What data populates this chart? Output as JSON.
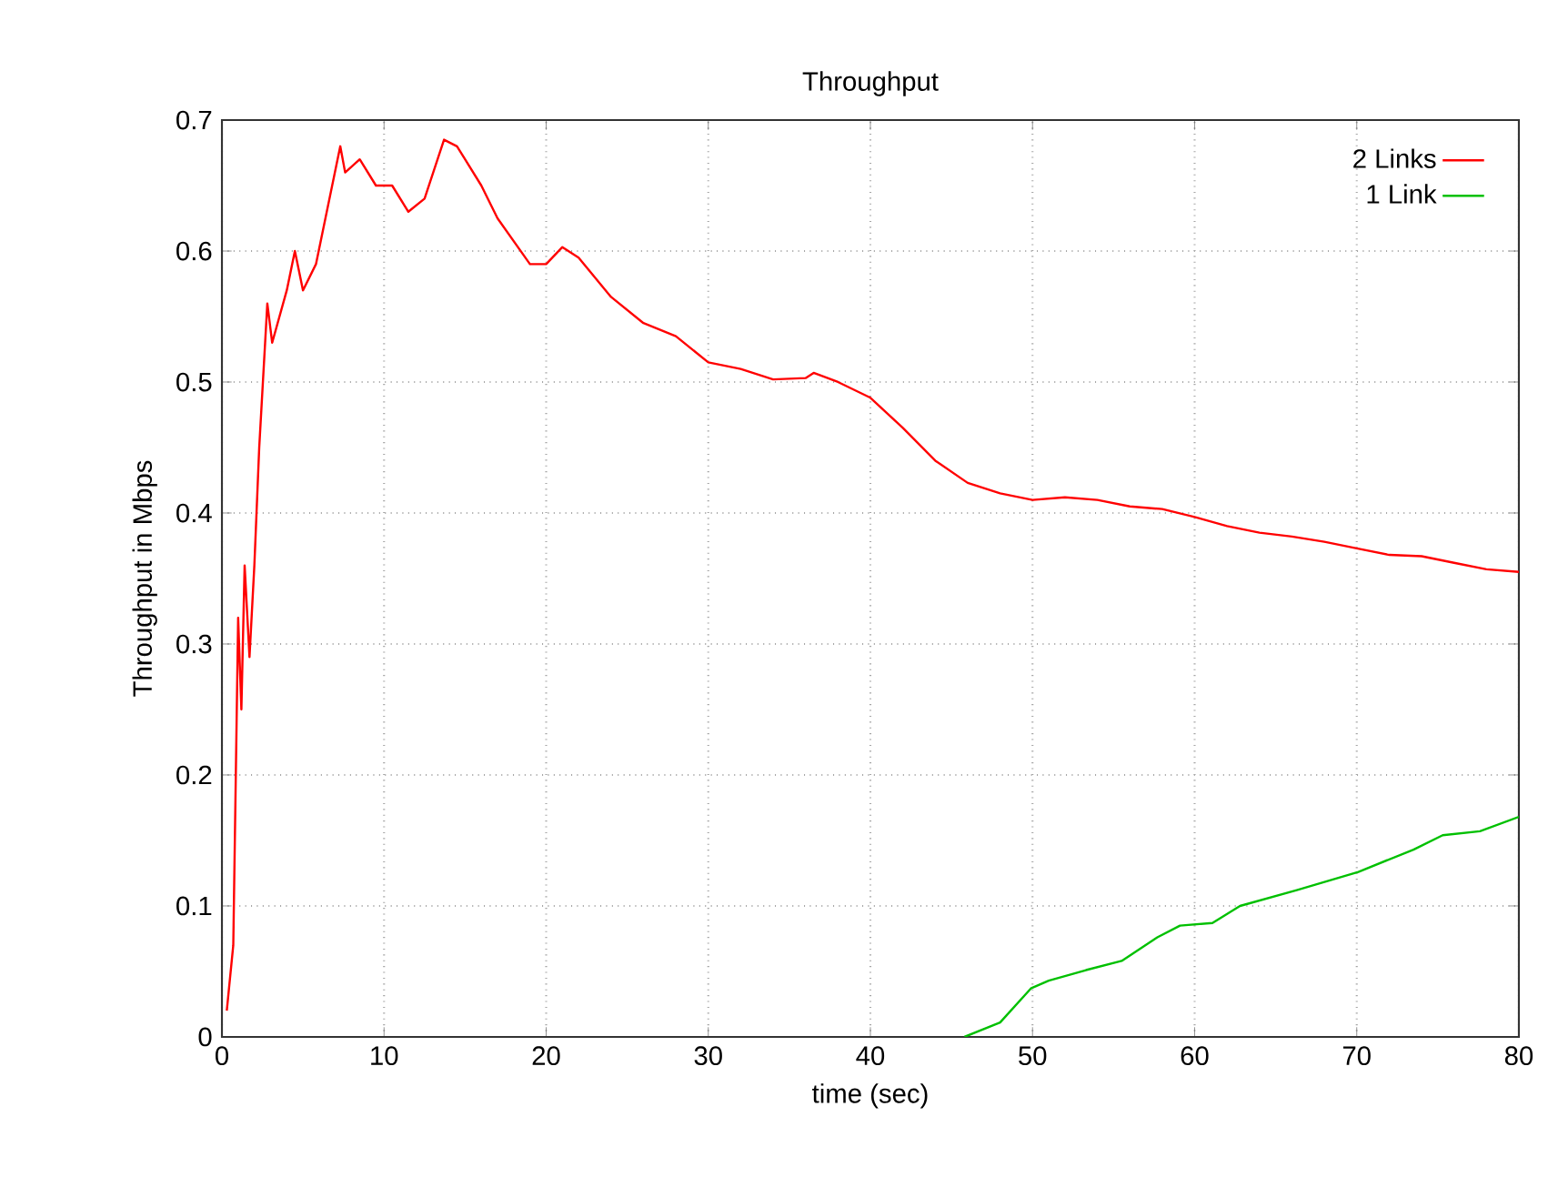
{
  "chart_data": {
    "type": "line",
    "title": "Throughput",
    "xlabel": "time (sec)",
    "ylabel": "Throughput in Mbps",
    "xlim": [
      0,
      80
    ],
    "ylim": [
      0,
      0.7
    ],
    "xticks": [
      0,
      10,
      20,
      30,
      40,
      50,
      60,
      70,
      80
    ],
    "yticks": [
      0,
      0.1,
      0.2,
      0.3,
      0.4,
      0.5,
      0.6,
      0.7
    ],
    "grid": true,
    "legend": "top right",
    "series": [
      {
        "name": "2 Links",
        "color": "#ff0000",
        "x": [
          0.3,
          0.7,
          1.0,
          1.2,
          1.4,
          1.7,
          2.0,
          2.3,
          2.8,
          3.1,
          4.0,
          4.5,
          5.0,
          5.8,
          7.3,
          7.6,
          8.5,
          9.5,
          10.5,
          11.5,
          12.5,
          13.7,
          14.5,
          16,
          17,
          19,
          20,
          21,
          22,
          24,
          26,
          28,
          30,
          32,
          34,
          36,
          36.5,
          38,
          40,
          42,
          44,
          46,
          48,
          50,
          52,
          54,
          56,
          58,
          60,
          62,
          64,
          66,
          68,
          70,
          72,
          74,
          76,
          78,
          80
        ],
        "values": [
          0.02,
          0.07,
          0.32,
          0.25,
          0.36,
          0.29,
          0.36,
          0.45,
          0.56,
          0.53,
          0.57,
          0.6,
          0.57,
          0.59,
          0.68,
          0.66,
          0.67,
          0.65,
          0.65,
          0.63,
          0.64,
          0.685,
          0.68,
          0.65,
          0.625,
          0.59,
          0.59,
          0.603,
          0.595,
          0.565,
          0.545,
          0.535,
          0.515,
          0.51,
          0.502,
          0.503,
          0.507,
          0.5,
          0.488,
          0.465,
          0.44,
          0.423,
          0.415,
          0.41,
          0.412,
          0.41,
          0.405,
          0.403,
          0.397,
          0.39,
          0.385,
          0.382,
          0.378,
          0.373,
          0.368,
          0.367,
          0.362,
          0.357,
          0.355
        ]
      },
      {
        "name": "1 Link",
        "color": "#00c000",
        "x": [
          45.8,
          48.0,
          49.9,
          51.0,
          53.3,
          55.5,
          57.7,
          59.1,
          61.1,
          62.8,
          66.3,
          70.1,
          73.5,
          75.3,
          77.6,
          80
        ],
        "values": [
          0,
          0.011,
          0.037,
          0.043,
          0.051,
          0.058,
          0.076,
          0.085,
          0.087,
          0.1,
          0.112,
          0.126,
          0.143,
          0.154,
          0.157,
          0.168
        ]
      }
    ]
  }
}
